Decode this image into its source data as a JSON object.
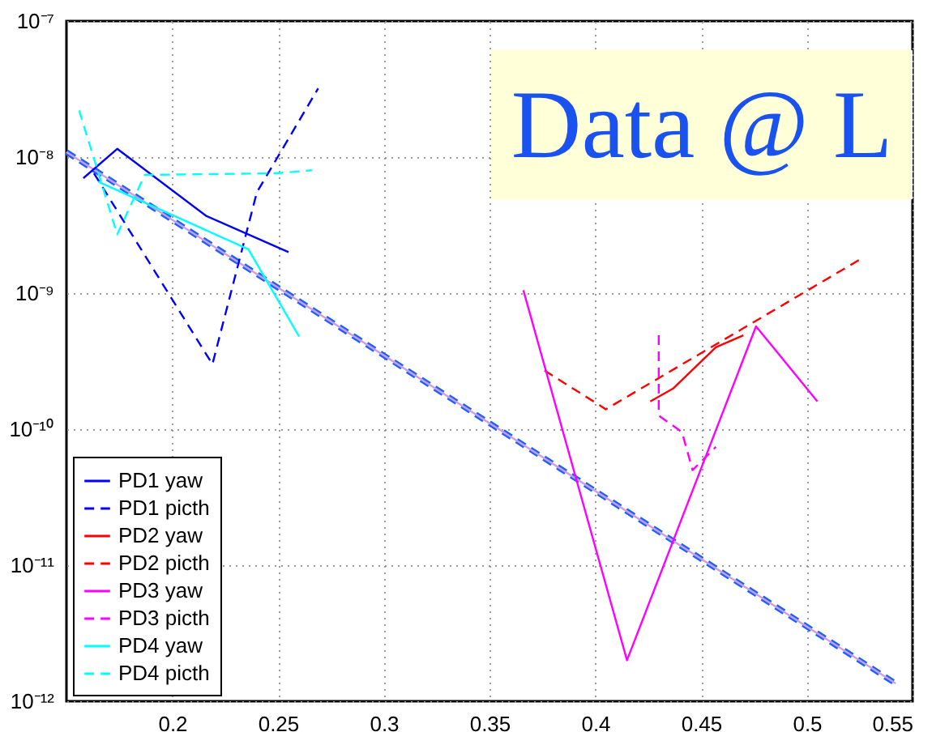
{
  "chart_data": {
    "type": "line",
    "log": "y",
    "grid": true,
    "legend": "bottom left",
    "xlim": [
      0.15,
      0.55
    ],
    "xticks": [
      0.2,
      0.25,
      0.3,
      0.35,
      0.4,
      0.45,
      0.5,
      0.55
    ],
    "ylim": [
      1e-12,
      1e-07
    ],
    "yticks": [
      {
        "value": 1e-12,
        "label": "10⁻¹²"
      },
      {
        "value": 1e-11,
        "label": "10⁻¹¹"
      },
      {
        "value": 1e-10,
        "label": "10⁻¹⁰"
      },
      {
        "value": 1e-09,
        "label": "10⁻⁹"
      },
      {
        "value": 1e-08,
        "label": "10⁻⁸"
      },
      {
        "value": 1e-07,
        "label": "10⁻⁷"
      }
    ],
    "annotations": [
      "Data @ L"
    ],
    "series": [
      {
        "name": "PD1 yaw",
        "color": "#0000ff",
        "line_style": "solid",
        "x": [
          0.158,
          0.174,
          0.216,
          0.255
        ],
        "values": [
          7e-09,
          1.15e-08,
          3.7e-09,
          2e-09
        ]
      },
      {
        "name": "PD1 picth",
        "color": "#0000ff",
        "line_style": "dashed",
        "x": [
          0.163,
          0.219,
          0.24,
          0.269
        ],
        "values": [
          7.6e-09,
          3e-10,
          5.5e-09,
          3.2e-08
        ]
      },
      {
        "name": "PD2 yaw",
        "color": "#ff0000",
        "line_style": "solid",
        "x": [
          0.426,
          0.437,
          0.457,
          0.47
        ],
        "values": [
          1.6e-10,
          2e-10,
          4e-10,
          4.9e-10
        ]
      },
      {
        "name": "PD2 picth",
        "color": "#ff0000",
        "line_style": "dashed",
        "x": [
          0.376,
          0.405,
          0.526
        ],
        "values": [
          2.7e-10,
          1.4e-10,
          1.8e-09
        ]
      },
      {
        "name": "PD3 yaw",
        "color": "#ff00ff",
        "line_style": "solid",
        "x": [
          0.366,
          0.415,
          0.476,
          0.505
        ],
        "values": [
          1.05e-09,
          2e-12,
          5.7e-10,
          1.6e-10
        ]
      },
      {
        "name": "PD3 picth",
        "color": "#ff00ff",
        "line_style": "dashed",
        "x": [
          0.43,
          0.43,
          0.441,
          0.446,
          0.457
        ],
        "values": [
          4.9e-10,
          1.26e-10,
          9.5e-11,
          5e-11,
          7.4e-11
        ]
      },
      {
        "name": "PD4 yaw",
        "color": "#00ffff",
        "line_style": "solid",
        "x": [
          0.165,
          0.236,
          0.26
        ],
        "values": [
          6.6e-09,
          2.1e-09,
          4.8e-10
        ]
      },
      {
        "name": "PD4 picth",
        "color": "#00ffff",
        "line_style": "dashed",
        "x": [
          0.156,
          0.174,
          0.187,
          0.249,
          0.266
        ],
        "values": [
          2.2e-08,
          2.7e-09,
          7.4e-09,
          7.6e-09,
          8e-09
        ]
      },
      {
        "color": "#1f5fff",
        "line_style": "dashed",
        "x": [
          0.15,
          0.542
        ],
        "values": [
          1.09e-08,
          1.35e-12
        ]
      },
      {
        "color": "#c8a0e8",
        "line_style": "solid",
        "x": [
          0.15,
          0.542
        ],
        "values": [
          1.09e-08,
          1.35e-12
        ]
      }
    ]
  }
}
